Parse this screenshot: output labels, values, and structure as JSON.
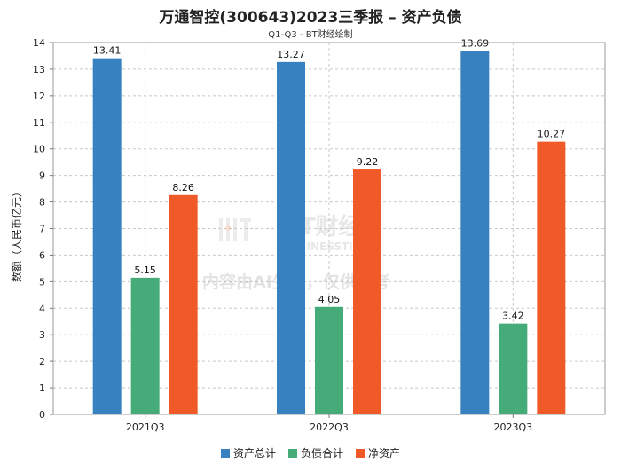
{
  "chart_data": {
    "type": "bar",
    "title": "万通智控(300643)2023三季报 – 资产负债",
    "subtitle": "Q1-Q3 - BT财经绘制",
    "categories": [
      "2021Q3",
      "2022Q3",
      "2023Q3"
    ],
    "series": [
      {
        "name": "资产总计",
        "color": "#3781c1",
        "values": [
          13.41,
          13.27,
          13.69
        ]
      },
      {
        "name": "负债合计",
        "color": "#45ab78",
        "values": [
          5.15,
          4.05,
          3.42
        ]
      },
      {
        "name": "净资产",
        "color": "#f05a28",
        "values": [
          8.26,
          9.22,
          10.27
        ]
      }
    ],
    "ylabel": "数额（人民币亿元）",
    "ylim": [
      0,
      14
    ],
    "yticks": [
      0,
      1,
      2,
      3,
      4,
      5,
      6,
      7,
      8,
      9,
      10,
      11,
      12,
      13,
      14
    ],
    "grid": true,
    "legend_position": "bottom"
  },
  "watermark": {
    "logo_text": "BT财经",
    "logo_sub": "BUSINESSTIMES",
    "notice": "内容由AI生成，仅供参考"
  }
}
